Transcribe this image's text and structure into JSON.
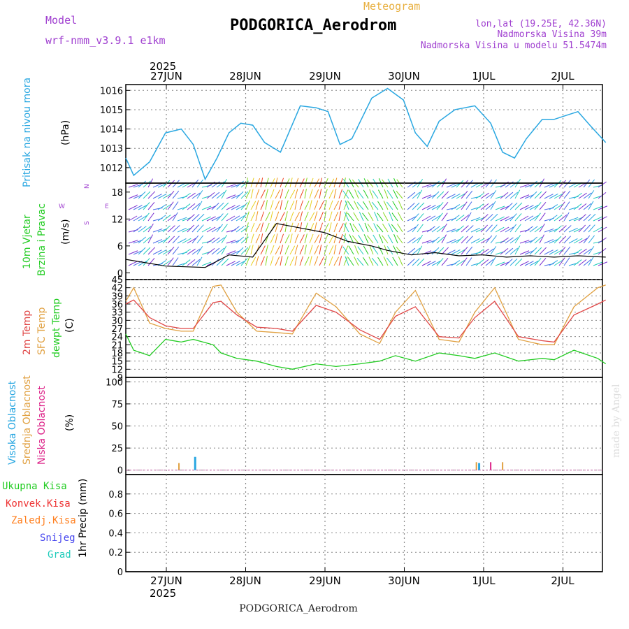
{
  "header": {
    "model_label": "Model",
    "model_name": "wrf-nmm_v3.9.1 e1km",
    "meteogram": "Meteogram",
    "station": "PODGORICA_Aerodrom",
    "lonlat": "lon,lat (19.25E, 42.36N)",
    "elevation": "Nadmorska Visina 39m",
    "model_elevation": "Nadmorska Visina u modelu 51.5474m",
    "year_top": "2025",
    "year_bottom": "2025",
    "footer_station": "PODGORICA_Aerodrom",
    "credit": "made by Angel"
  },
  "days": [
    "27JUN",
    "28JUN",
    "29JUN",
    "30JUN",
    "1JUL",
    "2JUL"
  ],
  "panels": {
    "pressure": {
      "label1": "Pritisak na nivou mora",
      "unit": "(hPa)"
    },
    "wind": {
      "label1": "10m Vjetar",
      "label2": "Brzina i Pravac",
      "unit": "(m/s)",
      "compass_n": "N",
      "compass_s": "S",
      "compass_w": "W",
      "compass_e": "E"
    },
    "temp": {
      "label1": "2m Temp",
      "label2": "SFC Temp",
      "label3": "dewpt Temp",
      "unit": "(C)"
    },
    "cloud": {
      "label1": "Visoka Oblacnost",
      "label2": "Srednja Oblacnost",
      "label3": "Niska Oblacnost",
      "unit": "(%)"
    },
    "precip": {
      "unit": "1hr Precip (mm)"
    }
  },
  "legend_precip": [
    {
      "label": "Ukupna Kisa",
      "color": "#22cc22"
    },
    {
      "label": "Konvek.Kisa",
      "color": "#ee3333"
    },
    {
      "label": "Zaledj.Kisa",
      "color": "#ff7f1e"
    },
    {
      "label": "Snijeg",
      "color": "#4444ee"
    },
    {
      "label": "Grad",
      "color": "#22ccbb"
    }
  ],
  "colors": {
    "pressure": "#29a7e1",
    "t2m": "#e04646",
    "tsfc": "#e0a040",
    "dewpt": "#22cc22",
    "high_cloud": "#29a7e1",
    "mid_cloud": "#e0a040",
    "low_cloud": "#dd2288",
    "violet": "#a040d0",
    "orange": "#e8b040",
    "grid": "#888888"
  },
  "chart_data": [
    {
      "type": "line",
      "name": "pressure",
      "ylabel": "(hPa)",
      "ylim": [
        1011.2,
        1016.3
      ],
      "yticks": [
        1012,
        1013,
        1014,
        1015,
        1016
      ],
      "x": [
        0,
        0.1,
        0.3,
        0.5,
        0.7,
        0.85,
        1.0,
        1.15,
        1.3,
        1.45,
        1.6,
        1.75,
        1.95,
        2.2,
        2.4,
        2.55,
        2.7,
        2.85,
        3.1,
        3.3,
        3.5,
        3.65,
        3.8,
        3.95,
        4.15,
        4.4,
        4.6,
        4.75,
        4.9,
        5.05,
        5.25,
        5.4,
        5.55,
        5.7,
        5.85,
        6.05
      ],
      "series": [
        {
          "values": [
            1012.5,
            1011.6,
            1012.3,
            1013.8,
            1014.0,
            1013.2,
            1011.4,
            1012.5,
            1013.8,
            1014.3,
            1014.2,
            1013.3,
            1012.8,
            1015.2,
            1015.1,
            1014.9,
            1013.2,
            1013.5,
            1015.6,
            1016.1,
            1015.5,
            1013.8,
            1013.1,
            1014.4,
            1015.0,
            1015.2,
            1014.3,
            1012.8,
            1012.5,
            1013.5,
            1014.5,
            1014.5,
            1014.7,
            1014.9,
            1014.2,
            1013.3
          ]
        }
      ]
    },
    {
      "type": "line",
      "name": "wind",
      "ylabel": "(m/s)",
      "ylim": [
        -1.5,
        20
      ],
      "yticks": [
        0,
        6,
        12,
        18
      ],
      "x": [
        0,
        0.5,
        1.0,
        1.3,
        1.6,
        1.9,
        2.2,
        2.5,
        2.8,
        3.1,
        3.3,
        3.6,
        3.9,
        4.2,
        4.5,
        4.8,
        5.1,
        5.4,
        5.7,
        6.05
      ],
      "series": [
        {
          "name": "speed",
          "values": [
            3,
            1.5,
            1.2,
            4,
            3.5,
            11,
            10,
            9,
            7,
            6,
            5,
            4,
            4.5,
            3.8,
            4,
            3.5,
            3.8,
            3.5,
            3.8,
            3.5
          ]
        }
      ]
    },
    {
      "type": "line",
      "name": "temperature",
      "ylabel": "(C)",
      "ylim": [
        9,
        45
      ],
      "yticks": [
        9,
        12,
        15,
        18,
        21,
        24,
        27,
        30,
        33,
        36,
        39,
        42,
        45
      ],
      "x": [
        0,
        0.1,
        0.3,
        0.5,
        0.7,
        0.85,
        1.1,
        1.2,
        1.4,
        1.65,
        1.9,
        2.1,
        2.4,
        2.65,
        2.95,
        3.2,
        3.4,
        3.65,
        3.95,
        4.2,
        4.4,
        4.65,
        4.95,
        5.25,
        5.4,
        5.65,
        5.95,
        6.05
      ],
      "series": [
        {
          "name": "2m Temp",
          "values": [
            36,
            37.5,
            31,
            28,
            27,
            27,
            36.5,
            37,
            32,
            27.5,
            27,
            26,
            35.5,
            33,
            26.5,
            23,
            31.5,
            35,
            24,
            23.5,
            31,
            37,
            24,
            22.5,
            22,
            32,
            36,
            37.5
          ]
        },
        {
          "name": "SFC Temp",
          "values": [
            37,
            42,
            29,
            27,
            26,
            26,
            42.5,
            43,
            33,
            26,
            25.5,
            25,
            40,
            35,
            25,
            21.5,
            33,
            41,
            23,
            22,
            33,
            42,
            23,
            21,
            21,
            35,
            42,
            43
          ]
        },
        {
          "name": "dewpt Temp",
          "values": [
            25,
            19,
            17,
            23,
            22,
            23,
            21,
            18,
            16,
            15,
            13,
            12,
            14,
            13,
            14,
            15,
            17,
            15,
            18,
            17,
            16,
            18,
            15,
            16,
            15.5,
            19,
            16,
            14
          ]
        }
      ]
    },
    {
      "type": "bar",
      "name": "cloudiness",
      "ylabel": "(%)",
      "ylim": [
        -5,
        105
      ],
      "yticks": [
        0,
        25,
        50,
        75,
        100
      ],
      "series": [
        {
          "name": "Visoka Oblacnost",
          "x": [
            0.87,
            4.45
          ],
          "values": [
            15,
            8
          ]
        },
        {
          "name": "Srednja Oblacnost",
          "x": [
            0.67,
            4.42,
            4.75
          ],
          "values": [
            8,
            9,
            9
          ]
        },
        {
          "name": "Niska Oblacnost",
          "x": [
            4.6
          ],
          "values": [
            9
          ]
        }
      ]
    },
    {
      "type": "bar",
      "name": "precipitation",
      "ylabel": "1hr Precip (mm)",
      "ylim": [
        0,
        1.0
      ],
      "yticks": [
        0,
        0.2,
        0.4,
        0.6,
        0.8
      ],
      "series": [
        {
          "name": "total",
          "values": []
        }
      ]
    }
  ]
}
